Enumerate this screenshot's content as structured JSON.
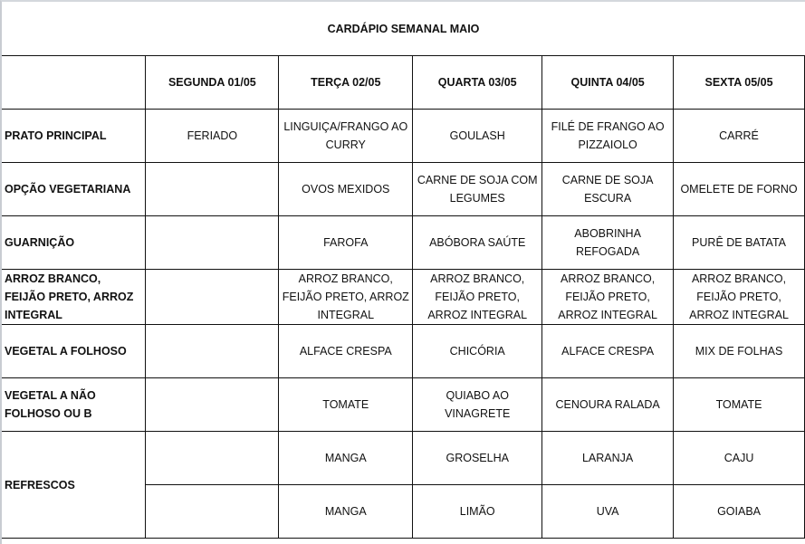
{
  "title": "CARDÁPIO SEMANAL MAIO",
  "days": [
    "SEGUNDA   01/05",
    "TERÇA  02/05",
    "QUARTA 03/05",
    "QUINTA 04/05",
    "SEXTA 05/05"
  ],
  "rows": [
    {
      "label": "PRATO PRINCIPAL",
      "cells": [
        "FERIADO",
        "LINGUIÇA/FRANGO AO CURRY",
        "GOULASH",
        "FILÉ DE FRANGO AO PIZZAIOLO",
        "CARRÉ"
      ]
    },
    {
      "label": "OPÇÃO VEGETARIANA",
      "cells": [
        "",
        "OVOS MEXIDOS",
        "CARNE DE SOJA COM LEGUMES",
        "CARNE DE SOJA ESCURA",
        "OMELETE DE FORNO"
      ]
    },
    {
      "label": "GUARNIÇÃO",
      "cells": [
        "",
        "FAROFA",
        "ABÓBORA SAÚTE",
        "ABOBRINHA REFOGADA",
        "PURÊ DE BATATA"
      ]
    },
    {
      "label": "ARROZ BRANCO, FEIJÃO PRETO, ARROZ INTEGRAL",
      "cells": [
        "",
        "ARROZ BRANCO, FEIJÃO PRETO, ARROZ INTEGRAL",
        "ARROZ BRANCO, FEIJÃO PRETO, ARROZ INTEGRAL",
        "ARROZ BRANCO, FEIJÃO PRETO, ARROZ INTEGRAL",
        "ARROZ BRANCO, FEIJÃO PRETO, ARROZ INTEGRAL"
      ]
    },
    {
      "label": "VEGETAL A FOLHOSO",
      "cells": [
        "",
        "ALFACE CRESPA",
        "CHICÓRIA",
        "ALFACE  CRESPA",
        "MIX DE FOLHAS"
      ]
    },
    {
      "label": "VEGETAL A NÃO FOLHOSO OU B",
      "cells": [
        "",
        "TOMATE",
        "QUIABO AO VINAGRETE",
        "CENOURA RALADA",
        "TOMATE"
      ]
    }
  ],
  "refrescos": {
    "label": "REFRESCOS",
    "rows": [
      [
        "",
        "MANGA",
        "GROSELHA",
        "LARANJA",
        "CAJU"
      ],
      [
        "",
        "MANGA",
        "LIMÃO",
        "UVA",
        "GOIABA"
      ]
    ]
  }
}
